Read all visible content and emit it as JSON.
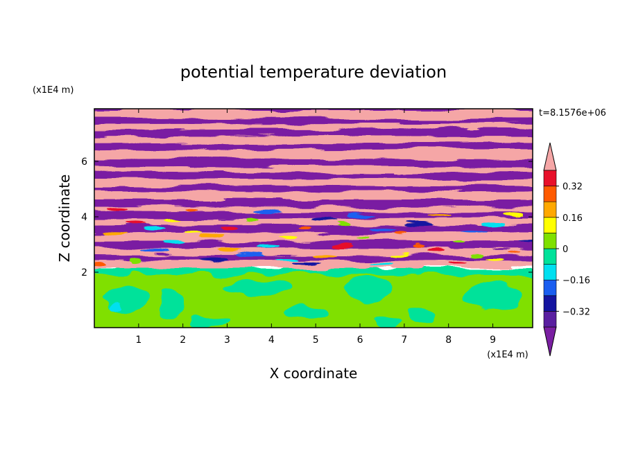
{
  "chart_data": {
    "type": "heatmap",
    "title": "potential temperature deviation",
    "xlabel": "X coordinate",
    "ylabel": "Z coordinate",
    "x_units": "(x1E4 m)",
    "y_units": "(x1E4 m)",
    "time_label": "t=8.1576e+06",
    "xlim": [
      0,
      9.9
    ],
    "ylim": [
      0,
      7.9
    ],
    "xticks": [
      1,
      2,
      3,
      4,
      5,
      6,
      7,
      8,
      9
    ],
    "xtick_labels": [
      "1",
      "2",
      "3",
      "4",
      "5",
      "6",
      "7",
      "8",
      "9"
    ],
    "yticks": [
      2,
      4,
      6
    ],
    "ytick_labels": [
      "2",
      "4",
      "6"
    ],
    "colorbar": {
      "levels": [
        -0.4,
        -0.32,
        -0.24,
        -0.16,
        -0.08,
        0,
        0.08,
        0.16,
        0.24,
        0.32,
        0.4
      ],
      "tick_values": [
        0.32,
        0.16,
        0,
        -0.16,
        -0.32
      ],
      "tick_labels": [
        "0.32",
        "0.16",
        "0",
        "−0.16",
        "−0.32"
      ],
      "colors": [
        "#7a1fa2",
        "#5a1fa0",
        "#1414a0",
        "#1a5ef0",
        "#00e0f0",
        "#00e29a",
        "#7fe000",
        "#ffff00",
        "#ffa800",
        "#ff5a00",
        "#e8102a",
        "#f5a6a6"
      ],
      "extend": "both"
    },
    "colors": {
      "warm_band": "#f5a6a6",
      "cold_band": "#7a1fa2",
      "lower_green": "#80e000",
      "lower_teal": "#00e29a"
    },
    "description_bands": [
      {
        "z_from": 0.0,
        "z_to": 2.2,
        "value": 0.02
      },
      {
        "z_from": 2.2,
        "z_to": 7.9,
        "value": "alternating -0.4 / +0.4"
      }
    ]
  }
}
